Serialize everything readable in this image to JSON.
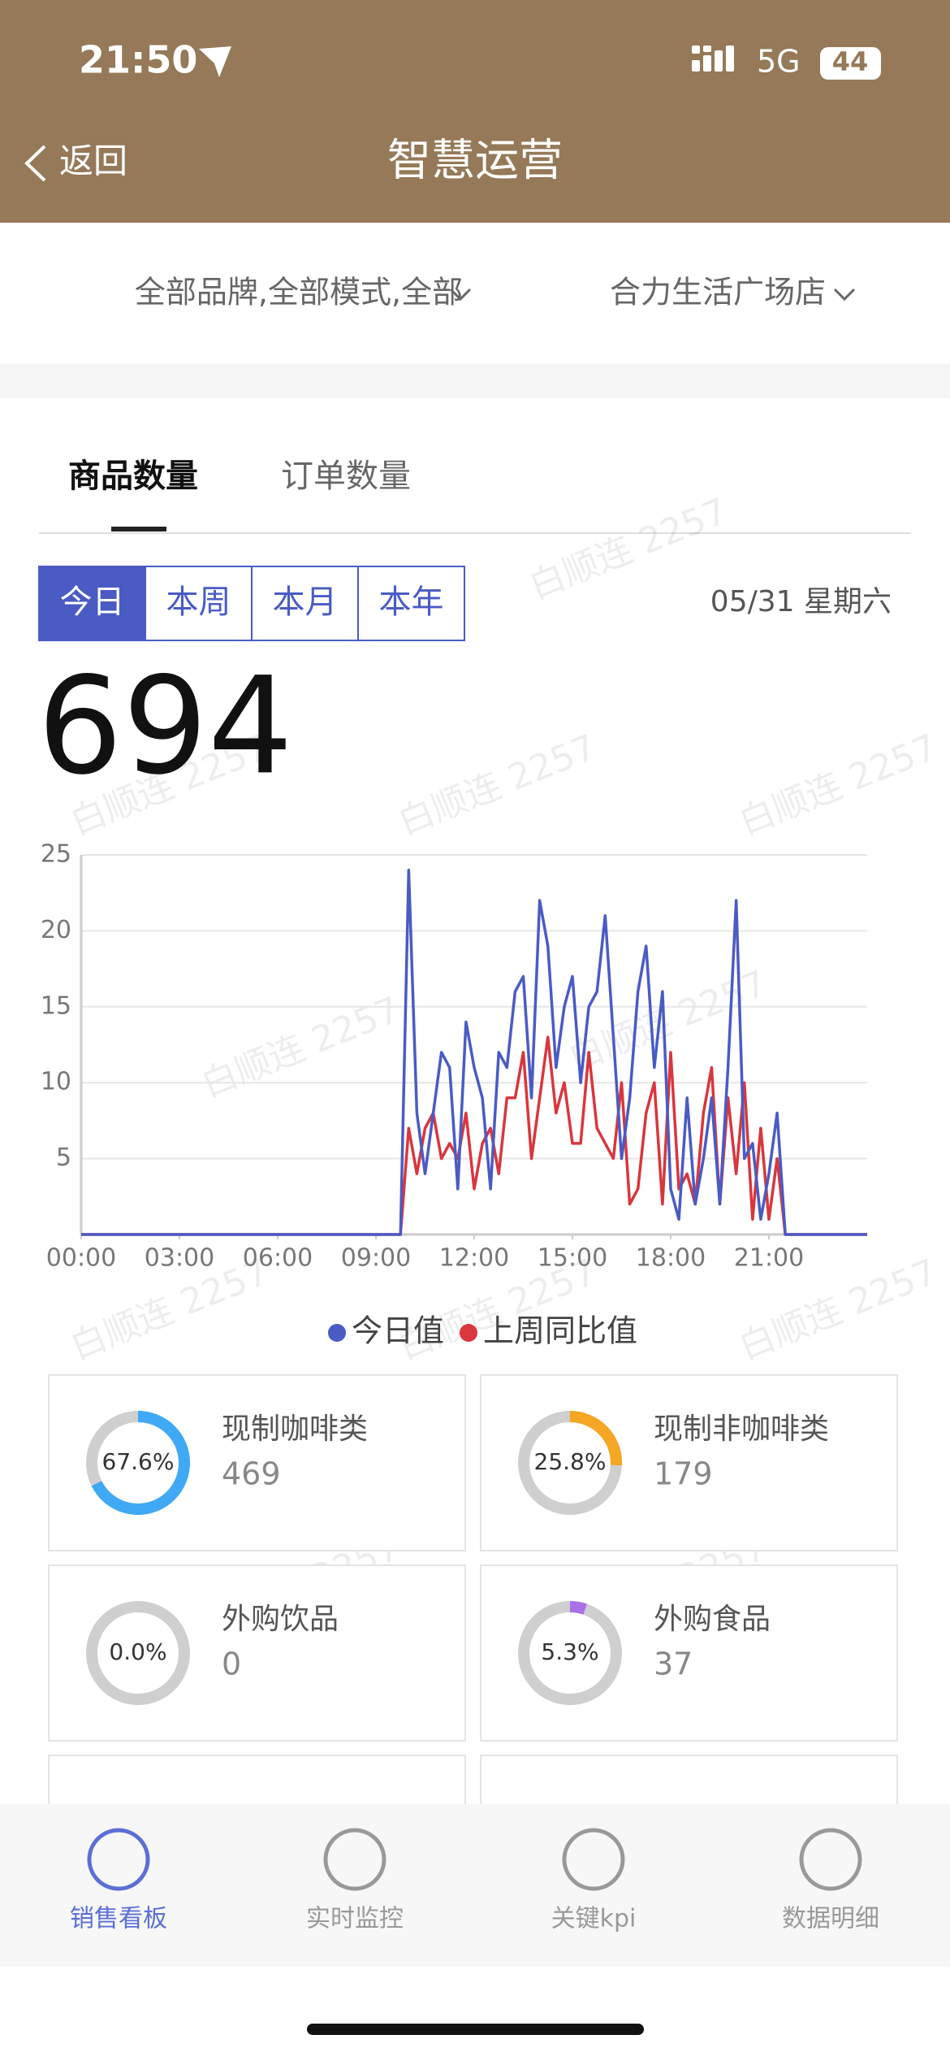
{
  "status_bar": {
    "time": "21:50",
    "network": "5G",
    "battery": "44"
  },
  "header": {
    "back": "返回",
    "title": "智慧运营"
  },
  "filters": [
    "全部品牌,全部模式,全部",
    "合力生活广场店"
  ],
  "tabs": [
    "商品数量",
    "订单数量"
  ],
  "periods": [
    "今日",
    "本周",
    "本月",
    "本年"
  ],
  "date": "05/31 星期六",
  "total": 694,
  "watermark": "白顺连 2257",
  "chart_data": {
    "type": "line",
    "x": [
      0,
      9.5,
      9.75,
      10,
      10.25,
      10.5,
      10.75,
      11,
      11.25,
      11.5,
      11.75,
      12,
      12.25,
      12.5,
      12.75,
      13,
      13.25,
      13.5,
      13.75,
      14,
      14.25,
      14.5,
      14.75,
      15,
      15.25,
      15.5,
      15.75,
      16,
      16.25,
      16.5,
      16.75,
      17,
      17.25,
      17.5,
      17.75,
      18,
      18.25,
      18.5,
      18.75,
      19,
      19.25,
      19.5,
      19.75,
      20,
      20.25,
      20.5,
      20.75,
      21,
      21.25,
      21.5,
      21.75,
      24
    ],
    "series": [
      {
        "name": "今日值",
        "color": "#4a5bc4",
        "values": [
          0,
          0,
          0,
          24,
          8,
          4,
          8,
          12,
          11,
          3,
          14,
          11,
          9,
          3,
          12,
          11,
          16,
          17,
          9,
          22,
          19,
          11,
          15,
          17,
          10,
          15,
          16,
          21,
          13,
          5,
          9,
          16,
          19,
          11,
          16,
          3,
          1,
          9,
          2,
          5,
          9,
          2,
          11,
          22,
          5,
          6,
          1,
          4,
          8,
          0,
          0,
          0
        ]
      },
      {
        "name": "上周同比值",
        "color": "#d9363e",
        "values": [
          0,
          0,
          0,
          7,
          4,
          7,
          8,
          5,
          6,
          5,
          8,
          3,
          6,
          7,
          4,
          9,
          9,
          12,
          5,
          9,
          13,
          8,
          10,
          6,
          6,
          12,
          7,
          6,
          5,
          10,
          2,
          3,
          8,
          10,
          2,
          12,
          3,
          4,
          2,
          8,
          11,
          2,
          9,
          4,
          10,
          1,
          7,
          1,
          5,
          0,
          0,
          0
        ]
      }
    ],
    "xlim": [
      0,
      24
    ],
    "xticks": [
      {
        "value": 0,
        "label": "00:00"
      },
      {
        "value": 3,
        "label": "03:00"
      },
      {
        "value": 6,
        "label": "06:00"
      },
      {
        "value": 9,
        "label": "09:00"
      },
      {
        "value": 12,
        "label": "12:00"
      },
      {
        "value": 15,
        "label": "15:00"
      },
      {
        "value": 18,
        "label": "18:00"
      },
      {
        "value": 21,
        "label": "21:00"
      }
    ],
    "ylim": [
      0,
      25
    ],
    "yticks": [
      5,
      10,
      15,
      20,
      25
    ],
    "grid": true
  },
  "cards": [
    {
      "name": "现制咖啡类",
      "count": 469,
      "percent": 67.6,
      "percent_label": "67.6%",
      "color": "#3fa9f5"
    },
    {
      "name": "现制非咖啡类",
      "count": 179,
      "percent": 25.8,
      "percent_label": "25.8%",
      "color": "#f5a623"
    },
    {
      "name": "外购饮品",
      "count": 0,
      "percent": 0,
      "percent_label": "0.0%",
      "color": "#999999"
    },
    {
      "name": "外购食品",
      "count": 37,
      "percent": 5.3,
      "percent_label": "5.3%",
      "color": "#a970e8"
    }
  ],
  "nav": [
    "销售看板",
    "实时监控",
    "关键kpi",
    "数据明细"
  ]
}
